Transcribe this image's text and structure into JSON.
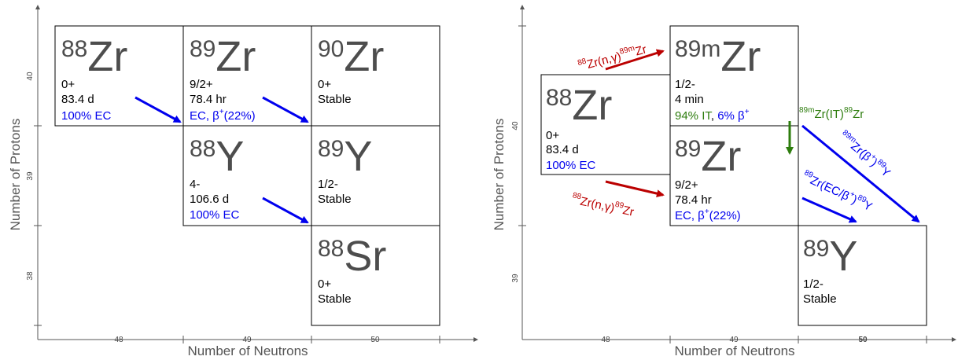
{
  "colors": {
    "axis": "#555555",
    "element": "#4d4d4d",
    "decay_blue": "#0000ee",
    "capture_red": "#bb0000",
    "it_green": "#2e7d0e"
  },
  "left_panel": {
    "xlabel": "Number of Neutrons",
    "ylabel": "Number of Protons",
    "x_ticks": [
      "48",
      "49",
      "50"
    ],
    "y_ticks": [
      "40",
      "39",
      "38"
    ],
    "nuclides": [
      {
        "mass": "88",
        "symbol": "Zr",
        "spin": "0+",
        "halflife": "83.4 d",
        "decay": "100% EC"
      },
      {
        "mass": "89",
        "symbol": "Zr",
        "spin": "9/2+",
        "halflife": "78.4 hr",
        "decay_a": "EC, β",
        "decay_sup": "+",
        "decay_b": "(22%)"
      },
      {
        "mass": "90",
        "symbol": "Zr",
        "spin": "0+",
        "halflife": "Stable"
      },
      {
        "mass": "88",
        "symbol": "Y",
        "spin": "4-",
        "halflife": "106.6 d",
        "decay": "100% EC"
      },
      {
        "mass": "89",
        "symbol": "Y",
        "spin": "1/2-",
        "halflife": "Stable"
      },
      {
        "mass": "88",
        "symbol": "Sr",
        "spin": "0+",
        "halflife": "Stable"
      }
    ]
  },
  "right_panel": {
    "xlabel": "Number of Neutrons",
    "ylabel": "Number of Protons",
    "x_ticks": [
      "48",
      "49",
      "50"
    ],
    "y_ticks": [
      "40",
      "39"
    ],
    "nuclides": [
      {
        "mass": "89m",
        "symbol": "Zr",
        "spin": "1/2-",
        "halflife": "4 min",
        "decay_green": "94% IT",
        "decay_sep": ", ",
        "decay_blue": "6% β",
        "decay_sup": "+"
      },
      {
        "mass": "88",
        "symbol": "Zr",
        "spin": "0+",
        "halflife": "83.4 d",
        "decay": "100% EC"
      },
      {
        "mass": "89",
        "symbol": "Zr",
        "spin": "9/2+",
        "halflife": "78.4 hr",
        "decay_a": "EC, β",
        "decay_sup": "+",
        "decay_b": "(22%)"
      },
      {
        "mass": "89",
        "symbol": "Y",
        "spin": "1/2-",
        "halflife": "Stable"
      }
    ],
    "reactions": {
      "capture_to_89m": {
        "sup1": "88",
        "body": "Zr(n,γ)",
        "sup2": "89m",
        "tail": "Zr"
      },
      "capture_to_89": {
        "sup1": "88",
        "body": "Zr(n,γ)",
        "sup2": "89",
        "tail": "Zr"
      },
      "isomeric": {
        "sup1": "89m",
        "body": "Zr(IT)",
        "sup2": "89",
        "tail": "Zr"
      },
      "beta_from_89m": {
        "sup1": "89m",
        "body": "Zr(β",
        "sup_plus": "+",
        "mid": ")",
        "sup2": "89",
        "tail": "Y"
      },
      "ec_from_89": {
        "sup1": "89",
        "body": "Zr(EC/β",
        "sup_plus": "+",
        "mid": ")",
        "sup2": "89",
        "tail": "Y"
      }
    }
  }
}
